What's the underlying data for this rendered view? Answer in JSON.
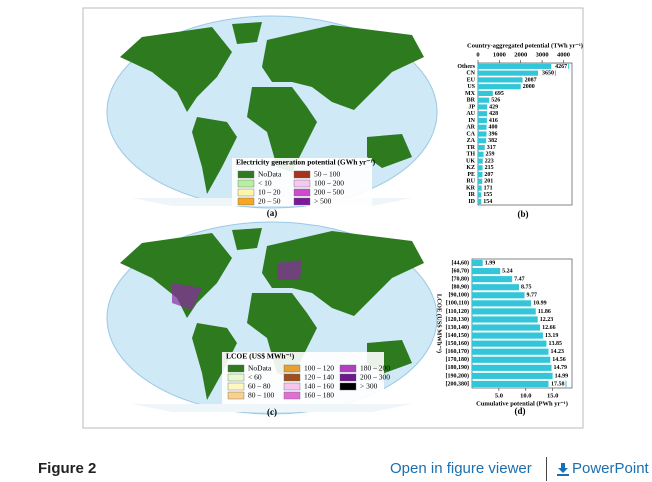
{
  "figure": {
    "maps": [
      {
        "panel": "(a)",
        "legend_title": "Electricity generation potential (GWh yr⁻¹)",
        "legend": [
          {
            "label": "NoData",
            "color": "#2d7a1f"
          },
          {
            "label": "< 10",
            "color": "#b6f0a0"
          },
          {
            "label": "10 – 20",
            "color": "#fff5a8"
          },
          {
            "label": "20 – 50",
            "color": "#f5a623"
          },
          {
            "label": "50 – 100",
            "color": "#a8321e"
          },
          {
            "label": "100 – 200",
            "color": "#f4c8f0"
          },
          {
            "label": "200 – 500",
            "color": "#d04ad0"
          },
          {
            "label": "> 500",
            "color": "#7a1a9a"
          }
        ]
      },
      {
        "panel": "(c)",
        "legend_title": "LCOE (US$ MWh⁻¹)",
        "legend": [
          {
            "label": "NoData",
            "color": "#2d7a1f"
          },
          {
            "label": "< 60",
            "color": "#e8f8d0"
          },
          {
            "label": "60 – 80",
            "color": "#fff7c0"
          },
          {
            "label": "80 – 100",
            "color": "#fcd08c"
          },
          {
            "label": "100 – 120",
            "color": "#e8a030"
          },
          {
            "label": "120 – 140",
            "color": "#a05020"
          },
          {
            "label": "140 – 160",
            "color": "#f6c6ee"
          },
          {
            "label": "160 – 180",
            "color": "#e070d8"
          },
          {
            "label": "180 – 200",
            "color": "#b040c0"
          },
          {
            "label": "200 – 300",
            "color": "#6a1a8a"
          },
          {
            "label": "> 300",
            "color": "#000000"
          }
        ]
      }
    ]
  },
  "chart_data": [
    {
      "type": "bar",
      "orientation": "horizontal",
      "panel": "(b)",
      "title": "Country-aggregated potential (TWh yr⁻¹)",
      "categories": [
        "Others",
        "CN",
        "EU",
        "US",
        "MX",
        "BR",
        "JP",
        "AU",
        "IN",
        "AR",
        "CA",
        "ZA",
        "TR",
        "TH",
        "UK",
        "KZ",
        "PE",
        "RU",
        "KR",
        "IR",
        "ID"
      ],
      "values": [
        4267,
        3650,
        2087,
        2000,
        695,
        526,
        429,
        428,
        416,
        400,
        396,
        382,
        317,
        259,
        223,
        215,
        207,
        201,
        171,
        155,
        154
      ],
      "color": "#33c6d8",
      "xlim": [
        0,
        4400
      ],
      "xticks": [
        0,
        1000,
        2000,
        3000,
        4000
      ]
    },
    {
      "type": "bar",
      "orientation": "horizontal",
      "panel": "(d)",
      "xlabel": "Cumulative potential (PWh yr⁻¹)",
      "ylabel": "LCOE (US$ MWh⁻¹)",
      "categories": [
        "[44,60)",
        "[60,70)",
        "[70,80)",
        "[80,90)",
        "[90,100)",
        "[100,110)",
        "[110,120)",
        "[120,130)",
        "[130,140)",
        "[140,150)",
        "[150,160)",
        "[160,170)",
        "[170,180)",
        "[180,190)",
        "[190,200)",
        "[200,380]"
      ],
      "values": [
        1.99,
        5.24,
        7.47,
        8.75,
        9.77,
        10.99,
        11.86,
        12.23,
        12.66,
        13.19,
        13.85,
        14.23,
        14.56,
        14.79,
        14.99,
        17.58
      ],
      "color": "#33c6d8",
      "xlim": [
        0,
        18.6
      ],
      "xticks": [
        {
          "value": 5,
          "label": "5.0"
        },
        {
          "value": 10,
          "label": "10.0"
        },
        {
          "value": 15,
          "label": "15.0"
        }
      ]
    }
  ],
  "footer": {
    "caption": "Figure 2",
    "viewer_link": "Open in figure viewer",
    "download_link": "PowerPoint"
  }
}
